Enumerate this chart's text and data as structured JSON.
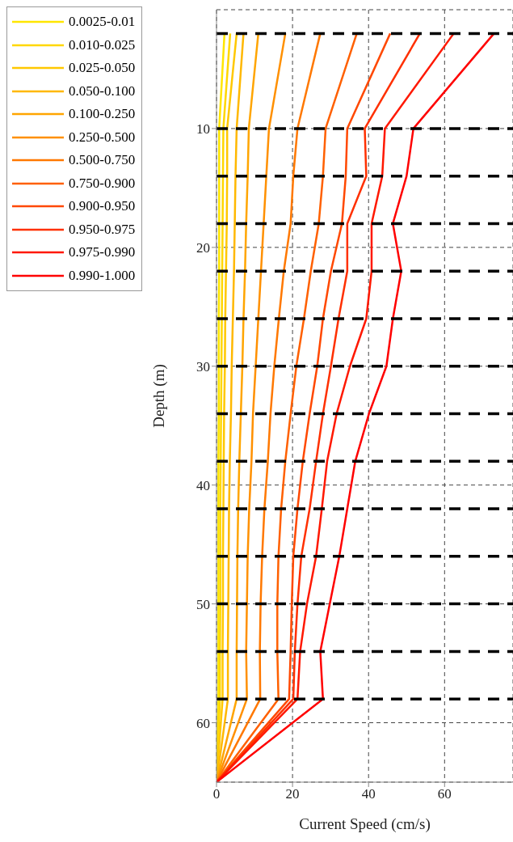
{
  "chart_data": {
    "type": "line",
    "xlabel": "Current Speed (cm/s)",
    "ylabel": "Depth (m)",
    "xlim": [
      0,
      78
    ],
    "xticks": [
      0,
      20,
      40,
      60
    ],
    "ylim": [
      65,
      0
    ],
    "yticks": [
      10,
      20,
      30,
      40,
      50,
      60
    ],
    "grid": true,
    "legend": "top left",
    "marker": "none",
    "line_style": "solid",
    "series": [
      {
        "name": "0.0025-0.01",
        "color": "#ffe600",
        "x": [
          2.1,
          0.7,
          0.7,
          0.7,
          0.7,
          0.6,
          0.6,
          0.6,
          0.5,
          0.5,
          0.5,
          0.5,
          0.5,
          0.5,
          0
        ],
        "values": [
          2,
          10,
          14,
          18,
          22,
          26,
          30,
          34,
          38,
          42,
          46,
          50,
          54,
          58,
          65
        ]
      },
      {
        "name": "0.010-0.025",
        "color": "#ffd700",
        "x": [
          3.6,
          1.8,
          1.7,
          1.6,
          1.5,
          1.4,
          1.3,
          1.2,
          1.1,
          1.0,
          1.0,
          1.0,
          0.9,
          0.9,
          0
        ],
        "values": [
          2,
          10,
          14,
          18,
          22,
          26,
          30,
          34,
          38,
          42,
          46,
          50,
          54,
          58,
          65
        ]
      },
      {
        "name": "0.025-0.050",
        "color": "#ffc800",
        "x": [
          5.3,
          2.8,
          2.8,
          2.7,
          2.5,
          2.3,
          2.2,
          2.0,
          1.9,
          1.8,
          1.7,
          1.7,
          1.6,
          1.6,
          0
        ],
        "values": [
          2,
          10,
          14,
          18,
          22,
          26,
          30,
          34,
          38,
          42,
          46,
          50,
          54,
          58,
          65
        ]
      },
      {
        "name": "0.050-0.100",
        "color": "#ffb800",
        "x": [
          7.1,
          5.3,
          5.0,
          4.8,
          4.6,
          4.3,
          4.0,
          3.8,
          3.5,
          3.3,
          3.2,
          3.1,
          3.0,
          3.0,
          0
        ],
        "values": [
          2,
          10,
          14,
          18,
          22,
          26,
          30,
          34,
          38,
          42,
          46,
          50,
          54,
          58,
          65
        ]
      },
      {
        "name": "0.100-0.250",
        "color": "#ffa500",
        "x": [
          11.0,
          8.5,
          8.2,
          7.8,
          7.5,
          7.1,
          6.8,
          6.4,
          6.0,
          5.7,
          5.5,
          5.4,
          5.3,
          5.3,
          0
        ],
        "values": [
          2,
          10,
          14,
          18,
          22,
          26,
          30,
          34,
          38,
          42,
          46,
          50,
          54,
          58,
          65
        ]
      },
      {
        "name": "0.250-0.500",
        "color": "#ff9000",
        "x": [
          18.1,
          13.8,
          13.1,
          12.4,
          11.7,
          11.0,
          10.3,
          9.6,
          9.2,
          8.6,
          8.2,
          8.0,
          7.8,
          8.0,
          0
        ],
        "values": [
          2,
          10,
          14,
          18,
          22,
          26,
          30,
          34,
          38,
          42,
          46,
          50,
          54,
          58,
          65
        ]
      },
      {
        "name": "0.500-0.750",
        "color": "#ff7800",
        "x": [
          27.3,
          21.3,
          20.2,
          19.5,
          17.7,
          16.4,
          15.2,
          14.2,
          13.5,
          12.6,
          12.0,
          11.6,
          11.4,
          11.5,
          0
        ],
        "values": [
          2,
          10,
          14,
          18,
          22,
          26,
          30,
          34,
          38,
          42,
          46,
          50,
          54,
          58,
          65
        ]
      },
      {
        "name": "0.750-0.900",
        "color": "#ff6000",
        "x": [
          36.9,
          28.7,
          28.0,
          26.9,
          24.8,
          23.0,
          21.0,
          19.5,
          18.1,
          17.0,
          16.3,
          16.0,
          16.0,
          16.3,
          0
        ],
        "values": [
          2,
          10,
          14,
          18,
          22,
          26,
          30,
          34,
          38,
          42,
          46,
          50,
          54,
          58,
          65
        ]
      },
      {
        "name": "0.900-0.950",
        "color": "#ff4800",
        "x": [
          45.7,
          34.4,
          34.0,
          33.0,
          30.1,
          28.0,
          26.5,
          24.5,
          22.7,
          21.3,
          20.2,
          19.8,
          19.5,
          19.1,
          0
        ],
        "values": [
          2,
          10,
          14,
          18,
          22,
          26,
          30,
          34,
          38,
          42,
          46,
          50,
          54,
          58,
          65
        ]
      },
      {
        "name": "0.950-0.975",
        "color": "#ff3000",
        "x": [
          53.5,
          39.0,
          39.4,
          34.4,
          34.4,
          32.1,
          30.1,
          28.0,
          26.2,
          24.5,
          22.3,
          21.3,
          20.6,
          20.2,
          0
        ],
        "values": [
          2,
          10,
          14,
          18,
          22,
          26,
          30,
          34,
          38,
          42,
          46,
          50,
          54,
          58,
          65
        ]
      },
      {
        "name": "0.975-0.990",
        "color": "#ff1800",
        "x": [
          62.4,
          44.3,
          43.6,
          40.8,
          40.8,
          39.4,
          35.1,
          31.6,
          29.1,
          27.7,
          26.2,
          23.8,
          22.0,
          21.3,
          0
        ],
        "values": [
          2,
          10,
          14,
          18,
          22,
          26,
          30,
          34,
          38,
          42,
          46,
          50,
          54,
          58,
          65
        ]
      },
      {
        "name": "0.990-1.000",
        "color": "#ff0000",
        "x": [
          73.0,
          51.8,
          50.0,
          46.4,
          48.6,
          46.4,
          44.7,
          40.1,
          36.5,
          34.4,
          32.3,
          29.8,
          27.3,
          28.0,
          0
        ],
        "values": [
          2,
          10,
          14,
          18,
          22,
          26,
          30,
          34,
          38,
          42,
          46,
          50,
          54,
          58,
          65
        ]
      }
    ],
    "ref_lines": [
      {
        "axis": "y",
        "value": 2,
        "color": "#000000",
        "line_style": "dashed"
      },
      {
        "axis": "y",
        "value": 10,
        "color": "#000000",
        "line_style": "dashed"
      },
      {
        "axis": "y",
        "value": 14,
        "color": "#000000",
        "line_style": "dashed"
      },
      {
        "axis": "y",
        "value": 18,
        "color": "#000000",
        "line_style": "dashed"
      },
      {
        "axis": "y",
        "value": 22,
        "color": "#000000",
        "line_style": "dashed"
      },
      {
        "axis": "y",
        "value": 26,
        "color": "#000000",
        "line_style": "dashed"
      },
      {
        "axis": "y",
        "value": 30,
        "color": "#000000",
        "line_style": "dashed"
      },
      {
        "axis": "y",
        "value": 34,
        "color": "#000000",
        "line_style": "dashed"
      },
      {
        "axis": "y",
        "value": 38,
        "color": "#000000",
        "line_style": "dashed"
      },
      {
        "axis": "y",
        "value": 42,
        "color": "#000000",
        "line_style": "dashed"
      },
      {
        "axis": "y",
        "value": 46,
        "color": "#000000",
        "line_style": "dashed"
      },
      {
        "axis": "y",
        "value": 50,
        "color": "#000000",
        "line_style": "dashed"
      },
      {
        "axis": "y",
        "value": 54,
        "color": "#000000",
        "line_style": "dashed"
      },
      {
        "axis": "y",
        "value": 58,
        "color": "#000000",
        "line_style": "dashed"
      }
    ]
  }
}
